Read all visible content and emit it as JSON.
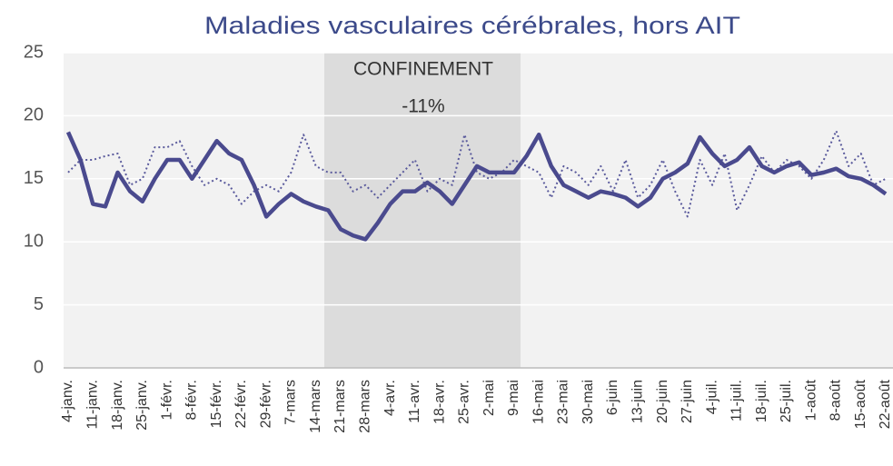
{
  "chart_data": {
    "type": "line",
    "title": "Maladies vasculaires cérébrales, hors AIT",
    "annotations": [
      "CONFINEMENT",
      "-11%"
    ],
    "categories": [
      "4-janv.",
      null,
      "11-janv.",
      null,
      "18-janv.",
      null,
      "25-janv.",
      null,
      "1-févr.",
      null,
      "8-févr.",
      null,
      "15-févr.",
      null,
      "22-févr.",
      null,
      "29-févr.",
      null,
      "7-mars",
      null,
      "14-mars",
      null,
      "21-mars",
      null,
      "28-mars",
      null,
      "4-avr.",
      null,
      "11-avr.",
      null,
      "18-avr.",
      null,
      "25-avr.",
      null,
      "2-mai",
      null,
      "9-mai",
      null,
      "16-mai",
      null,
      "23-mai",
      null,
      "30-mai",
      null,
      "6-juin",
      null,
      "13-juin",
      null,
      "20-juin",
      null,
      "27-juin",
      null,
      "4-juil.",
      null,
      "11-juil.",
      null,
      "18-juil.",
      null,
      "25-juil.",
      null,
      "1-août",
      null,
      "8-août",
      null,
      "15-août",
      null,
      "22-août"
    ],
    "series": [
      {
        "color": "#4a4a8e",
        "style": "solid",
        "values": [
          18.7,
          16.5,
          13,
          12.8,
          15.5,
          14,
          13.2,
          15,
          16.5,
          16.5,
          15,
          16.5,
          18,
          17,
          16.5,
          14.5,
          12,
          13,
          13.8,
          13.2,
          12.8,
          12.5,
          11,
          10.5,
          10.2,
          11.5,
          13,
          14,
          14,
          14.7,
          14,
          13,
          14.5,
          16,
          15.5,
          15.5,
          15.5,
          16.8,
          18.5,
          16,
          14.5,
          14,
          13.5,
          14,
          13.8,
          13.5,
          12.8,
          13.5,
          15,
          15.5,
          16.2,
          18.3,
          17,
          16,
          16.5,
          17.5,
          16,
          15.5,
          16,
          16.3,
          15.3,
          15.5,
          15.8,
          15.2,
          15,
          14.5,
          13.8
        ]
      },
      {
        "color": "#5a5a9c",
        "style": "dotted",
        "values": [
          15.5,
          16.5,
          16.5,
          16.8,
          17,
          14.5,
          15,
          17.5,
          17.5,
          18,
          16,
          14.5,
          15,
          14.5,
          13,
          14,
          14.5,
          14,
          15.5,
          18.5,
          16,
          15.5,
          15.5,
          14,
          14.5,
          13.5,
          14.5,
          15.5,
          16.5,
          14,
          15,
          14.5,
          18.5,
          15.5,
          15,
          15.5,
          16.5,
          16,
          15.5,
          13.5,
          16,
          15.5,
          14.5,
          16,
          14,
          16.5,
          13.5,
          14.5,
          16.5,
          14,
          12,
          16.5,
          14.5,
          17,
          12.5,
          14.5,
          16.8,
          15.5,
          16.5,
          16,
          15,
          16.5,
          18.8,
          16,
          17,
          14.5,
          15
        ]
      }
    ],
    "ylim": [
      0,
      25
    ],
    "yticks": [
      0,
      5,
      10,
      15,
      20,
      25
    ],
    "grid": true
  }
}
